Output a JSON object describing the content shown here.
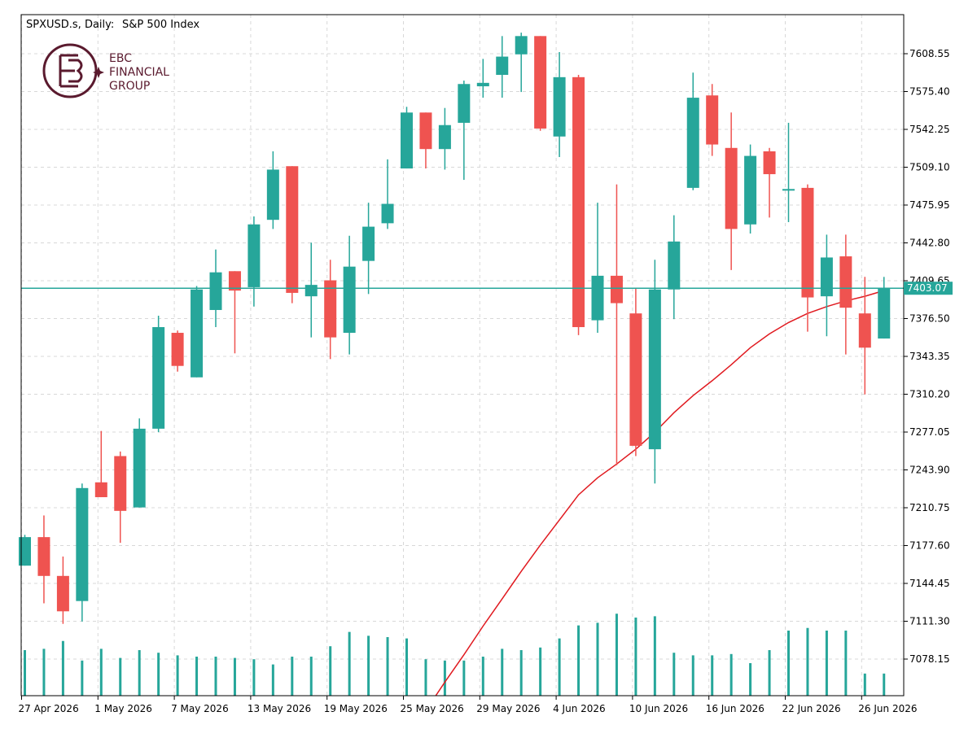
{
  "header": {
    "symbol": "SPXUSD.s, Daily:",
    "description": "S&P 500 Index"
  },
  "logo": {
    "line1": "EBC",
    "line2": "FINANCIAL",
    "line3": "GROUP"
  },
  "colors": {
    "bull": "#26a69a",
    "bear": "#ef5350",
    "ma": "#e0191f",
    "price_line": "#26a69a",
    "grid": "#d8d8d8",
    "axis": "#000000",
    "logo": "#5a1a2e"
  },
  "chart_data": {
    "type": "candlestick",
    "timeframe": "Daily",
    "price_axis": {
      "ticks": [
        "7608.55",
        "7575.40",
        "7542.25",
        "7509.10",
        "7475.95",
        "7442.80",
        "7409.65",
        "7376.50",
        "7343.35",
        "7310.20",
        "7277.05",
        "7243.90",
        "7210.75",
        "7177.60",
        "7144.45",
        "7111.30",
        "7078.15"
      ]
    },
    "x_axis": {
      "labels": [
        "27 Apr 2026",
        "1 May 2026",
        "7 May 2026",
        "13 May 2026",
        "19 May 2026",
        "25 May 2026",
        "29 May 2026",
        "4 Jun 2026",
        "10 Jun 2026",
        "16 Jun 2026",
        "22 Jun 2026",
        "26 Jun 2026"
      ],
      "label_bar_index": [
        0,
        4,
        8,
        12,
        16,
        20,
        24,
        28,
        32,
        36,
        40,
        44
      ]
    },
    "current_price": "7403.07",
    "grid": true,
    "candles": [
      {
        "o": 7160,
        "h": 7187,
        "l": 7160,
        "c": 7185
      },
      {
        "o": 7185,
        "h": 7204,
        "l": 7127,
        "c": 7151
      },
      {
        "o": 7151,
        "h": 7168,
        "l": 7109,
        "c": 7120
      },
      {
        "o": 7129,
        "h": 7232,
        "l": 7111,
        "c": 7228
      },
      {
        "o": 7233,
        "h": 7278,
        "l": 7220,
        "c": 7220
      },
      {
        "o": 7256,
        "h": 7260,
        "l": 7180,
        "c": 7208
      },
      {
        "o": 7211,
        "h": 7289,
        "l": 7211,
        "c": 7280
      },
      {
        "o": 7280,
        "h": 7379,
        "l": 7277,
        "c": 7369
      },
      {
        "o": 7364,
        "h": 7366,
        "l": 7330,
        "c": 7335
      },
      {
        "o": 7325,
        "h": 7405,
        "l": 7325,
        "c": 7402
      },
      {
        "o": 7384,
        "h": 7437,
        "l": 7369,
        "c": 7417
      },
      {
        "o": 7418,
        "h": 7418,
        "l": 7346,
        "c": 7401
      },
      {
        "o": 7404,
        "h": 7466,
        "l": 7387,
        "c": 7459
      },
      {
        "o": 7463,
        "h": 7523,
        "l": 7455,
        "c": 7507
      },
      {
        "o": 7510,
        "h": 7510,
        "l": 7390,
        "c": 7399
      },
      {
        "o": 7396,
        "h": 7443,
        "l": 7360,
        "c": 7406
      },
      {
        "o": 7410,
        "h": 7428,
        "l": 7341,
        "c": 7360
      },
      {
        "o": 7364,
        "h": 7449,
        "l": 7345,
        "c": 7422
      },
      {
        "o": 7427,
        "h": 7478,
        "l": 7398,
        "c": 7457
      },
      {
        "o": 7460,
        "h": 7516,
        "l": 7455,
        "c": 7477
      },
      {
        "o": 7508,
        "h": 7562,
        "l": 7508,
        "c": 7557
      },
      {
        "o": 7557,
        "h": 7557,
        "l": 7508,
        "c": 7525
      },
      {
        "o": 7525,
        "h": 7561,
        "l": 7507,
        "c": 7546
      },
      {
        "o": 7548,
        "h": 7585,
        "l": 7498,
        "c": 7582
      },
      {
        "o": 7580,
        "h": 7604,
        "l": 7570,
        "c": 7583
      },
      {
        "o": 7590,
        "h": 7624,
        "l": 7570,
        "c": 7606
      },
      {
        "o": 7608,
        "h": 7627,
        "l": 7575,
        "c": 7624
      },
      {
        "o": 7624,
        "h": 7624,
        "l": 7541,
        "c": 7543
      },
      {
        "o": 7536,
        "h": 7610,
        "l": 7518,
        "c": 7588
      },
      {
        "o": 7588,
        "h": 7590,
        "l": 7362,
        "c": 7369
      },
      {
        "o": 7375,
        "h": 7478,
        "l": 7364,
        "c": 7414
      },
      {
        "o": 7414,
        "h": 7494,
        "l": 7248,
        "c": 7390
      },
      {
        "o": 7381,
        "h": 7403,
        "l": 7256,
        "c": 7265
      },
      {
        "o": 7262,
        "h": 7428,
        "l": 7232,
        "c": 7402
      },
      {
        "o": 7402,
        "h": 7467,
        "l": 7376,
        "c": 7444
      },
      {
        "o": 7491,
        "h": 7592,
        "l": 7489,
        "c": 7570
      },
      {
        "o": 7572,
        "h": 7582,
        "l": 7519,
        "c": 7529
      },
      {
        "o": 7526,
        "h": 7557,
        "l": 7419,
        "c": 7455
      },
      {
        "o": 7459,
        "h": 7529,
        "l": 7451,
        "c": 7519
      },
      {
        "o": 7523,
        "h": 7526,
        "l": 7465,
        "c": 7503
      },
      {
        "o": 7490,
        "h": 7548,
        "l": 7461,
        "c": 7490
      },
      {
        "o": 7491,
        "h": 7494,
        "l": 7365,
        "c": 7395
      },
      {
        "o": 7396,
        "h": 7450,
        "l": 7361,
        "c": 7430
      },
      {
        "o": 7431,
        "h": 7450,
        "l": 7345,
        "c": 7386
      },
      {
        "o": 7381,
        "h": 7413,
        "l": 7310,
        "c": 7351
      },
      {
        "o": 7359,
        "h": 7413,
        "l": 7359,
        "c": 7403
      }
    ],
    "volume_relative": [
      0.35,
      0.36,
      0.42,
      0.27,
      0.36,
      0.29,
      0.35,
      0.33,
      0.31,
      0.3,
      0.3,
      0.29,
      0.28,
      0.24,
      0.3,
      0.3,
      0.38,
      0.49,
      0.46,
      0.45,
      0.44,
      0.28,
      0.27,
      0.27,
      0.3,
      0.36,
      0.35,
      0.37,
      0.44,
      0.54,
      0.56,
      0.63,
      0.6,
      0.61,
      0.33,
      0.31,
      0.31,
      0.32,
      0.25,
      0.35,
      0.5,
      0.52,
      0.5,
      0.5,
      0.17,
      0.17
    ],
    "moving_average": [
      {
        "bar": 21,
        "v": 7033
      },
      {
        "bar": 22,
        "v": 7058
      },
      {
        "bar": 23,
        "v": 7082
      },
      {
        "bar": 24,
        "v": 7107
      },
      {
        "bar": 25,
        "v": 7131
      },
      {
        "bar": 26,
        "v": 7155
      },
      {
        "bar": 27,
        "v": 7178
      },
      {
        "bar": 28,
        "v": 7200
      },
      {
        "bar": 29,
        "v": 7222
      },
      {
        "bar": 30,
        "v": 7237
      },
      {
        "bar": 31,
        "v": 7249
      },
      {
        "bar": 32,
        "v": 7262
      },
      {
        "bar": 33,
        "v": 7277
      },
      {
        "bar": 34,
        "v": 7294
      },
      {
        "bar": 35,
        "v": 7309
      },
      {
        "bar": 36,
        "v": 7322
      },
      {
        "bar": 37,
        "v": 7336
      },
      {
        "bar": 38,
        "v": 7351
      },
      {
        "bar": 39,
        "v": 7363
      },
      {
        "bar": 40,
        "v": 7373
      },
      {
        "bar": 41,
        "v": 7381
      },
      {
        "bar": 42,
        "v": 7387
      },
      {
        "bar": 43,
        "v": 7392
      },
      {
        "bar": 44,
        "v": 7396
      },
      {
        "bar": 45,
        "v": 7401
      }
    ]
  }
}
